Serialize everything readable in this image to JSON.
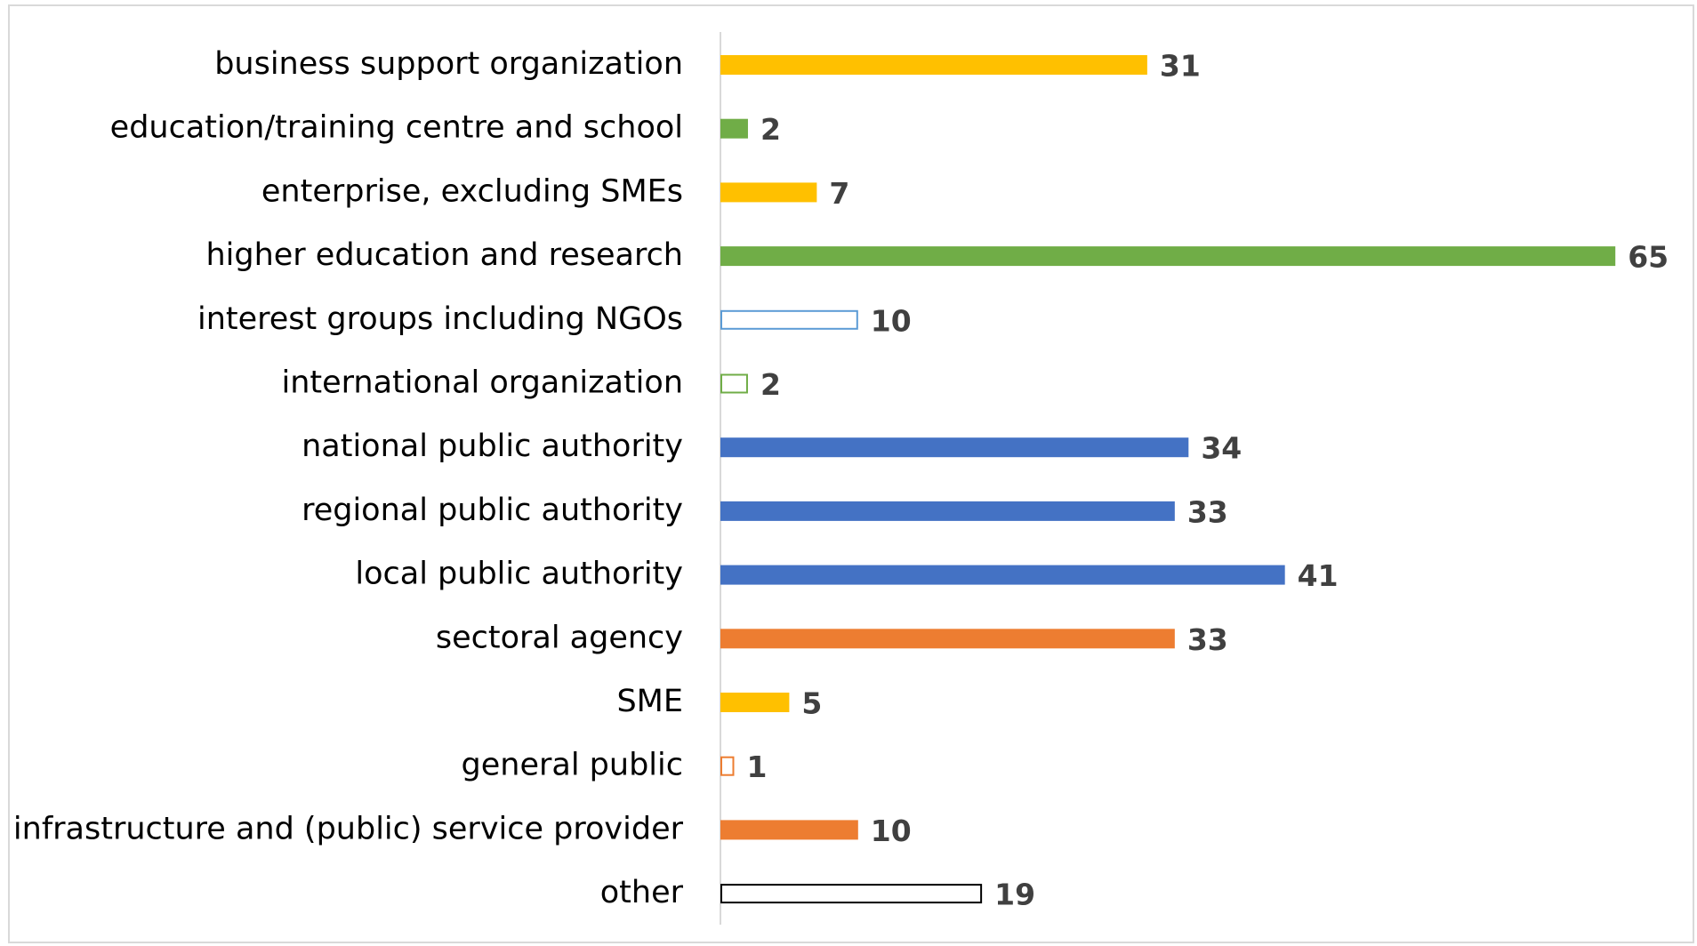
{
  "chart_data": {
    "type": "bar",
    "orientation": "horizontal",
    "categories": [
      "business support organization",
      "education/training centre and school",
      "enterprise, excluding SMEs",
      "higher education and research",
      "interest groups including NGOs",
      "international organization",
      "national public authority",
      "regional public authority",
      "local public authority",
      "sectoral agency",
      "SME",
      "general public",
      "infrastructure and (public) service provider",
      "other"
    ],
    "values": [
      31,
      2,
      7,
      65,
      10,
      2,
      34,
      33,
      41,
      33,
      5,
      1,
      10,
      19
    ],
    "colors": [
      "#ffc000",
      "#70ad47",
      "#ffc000",
      "#70ad47",
      "#5b9bd5",
      "#70ad47",
      "#4472c4",
      "#4472c4",
      "#4472c4",
      "#ed7d31",
      "#ffc000",
      "#ed7d31",
      "#ed7d31",
      "#000000"
    ],
    "filled": [
      true,
      true,
      true,
      true,
      false,
      false,
      true,
      true,
      true,
      true,
      true,
      false,
      true,
      false
    ]
  }
}
